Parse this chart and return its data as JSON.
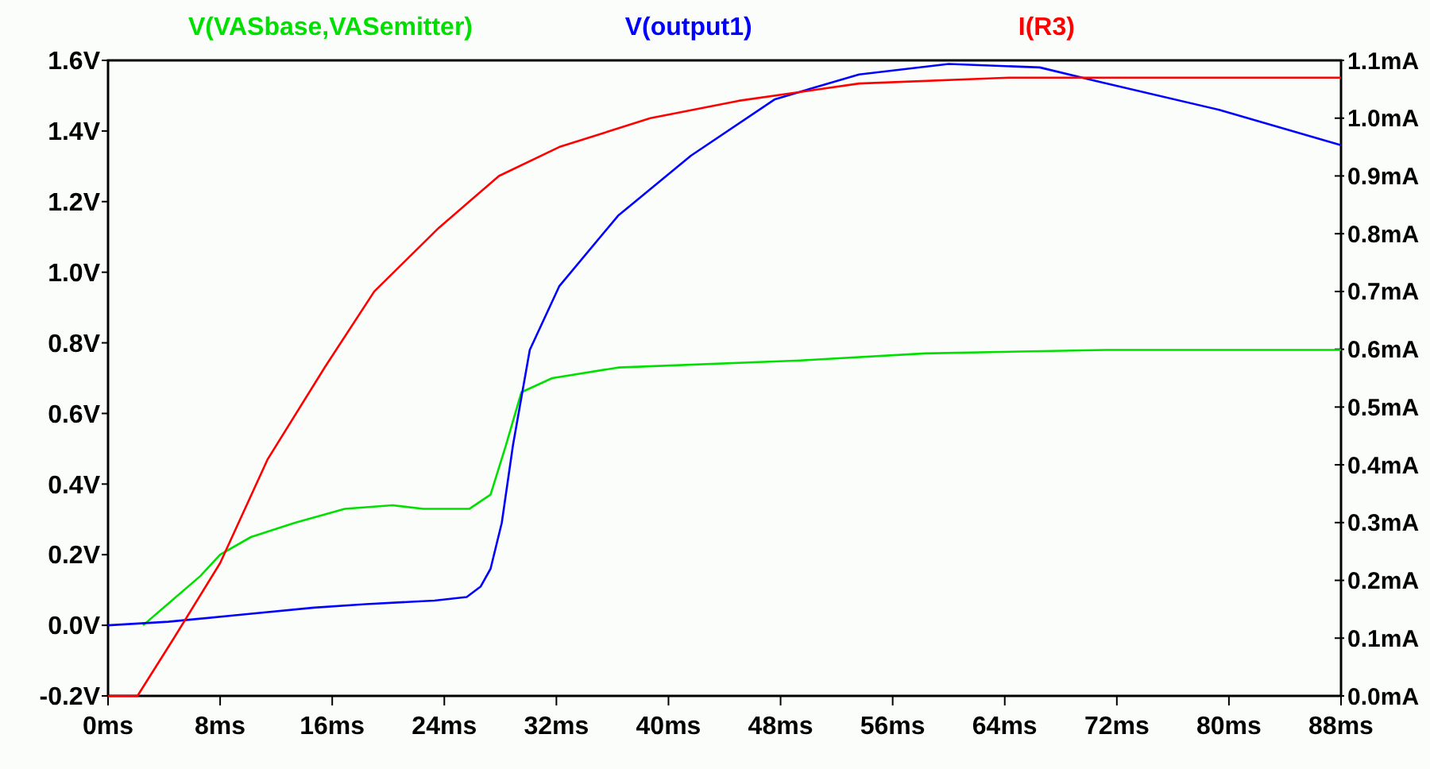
{
  "chart_data": {
    "type": "line",
    "legend": "top",
    "grid": false,
    "marker": "none",
    "line_style": "solid",
    "xlim": [
      0,
      88
    ],
    "xticks": [
      {
        "value": 0,
        "label": "0ms"
      },
      {
        "value": 8,
        "label": "8ms"
      },
      {
        "value": 16,
        "label": "16ms"
      },
      {
        "value": 24,
        "label": "24ms"
      },
      {
        "value": 32,
        "label": "32ms"
      },
      {
        "value": 40,
        "label": "40ms"
      },
      {
        "value": 48,
        "label": "48ms"
      },
      {
        "value": 56,
        "label": "56ms"
      },
      {
        "value": 64,
        "label": "64ms"
      },
      {
        "value": 72,
        "label": "72ms"
      },
      {
        "value": 80,
        "label": "80ms"
      },
      {
        "value": 88,
        "label": "88ms"
      }
    ],
    "ylim": [
      -0.2,
      1.6
    ],
    "yticks": [
      {
        "value": -0.2,
        "label": "-0.2V"
      },
      {
        "value": 0,
        "label": "0.0V"
      },
      {
        "value": 0.2,
        "label": "0.2V"
      },
      {
        "value": 0.4,
        "label": "0.4V"
      },
      {
        "value": 0.6,
        "label": "0.6V"
      },
      {
        "value": 0.8,
        "label": "0.8V"
      },
      {
        "value": 1.0,
        "label": "1.0V"
      },
      {
        "value": 1.2,
        "label": "1.2V"
      },
      {
        "value": 1.4,
        "label": "1.4V"
      },
      {
        "value": 1.6,
        "label": "1.6V"
      }
    ],
    "y2lim": [
      0,
      1.1
    ],
    "y2ticks": [
      {
        "value": 0,
        "label": "0.0mA"
      },
      {
        "value": 0.1,
        "label": "0.1mA"
      },
      {
        "value": 0.2,
        "label": "0.2mA"
      },
      {
        "value": 0.3,
        "label": "0.3mA"
      },
      {
        "value": 0.4,
        "label": "0.4mA"
      },
      {
        "value": 0.5,
        "label": "0.5mA"
      },
      {
        "value": 0.6,
        "label": "0.6mA"
      },
      {
        "value": 0.7,
        "label": "0.7mA"
      },
      {
        "value": 0.8,
        "label": "0.8mA"
      },
      {
        "value": 0.9,
        "label": "0.9mA"
      },
      {
        "value": 1.0,
        "label": "1.0mA"
      },
      {
        "value": 1.1,
        "label": "1.1mA"
      }
    ],
    "series": [
      {
        "name": "V(VASbase,VASemitter)",
        "color": "#00e000",
        "x": [
          2.5,
          6.6,
          8,
          10.2,
          13.3,
          16.9,
          20.3,
          22.5,
          25.8,
          27.3,
          28.4,
          29.5,
          31.7,
          36.4,
          49.4,
          58.3,
          71.2,
          88
        ],
        "values": [
          0,
          0.14,
          0.2,
          0.25,
          0.29,
          0.33,
          0.34,
          0.33,
          0.33,
          0.37,
          0.51,
          0.66,
          0.7,
          0.73,
          0.75,
          0.77,
          0.78,
          0.78
        ]
      },
      {
        "name": "V(output1)",
        "color": "#0000ff",
        "x": [
          0,
          4.3,
          9.5,
          14.7,
          18.4,
          23.3,
          25.6,
          26.6,
          27.3,
          28.1,
          28.9,
          30.1,
          32.2,
          36.4,
          41.6,
          47.6,
          53.6,
          60,
          66.5,
          70.7,
          79.3,
          88
        ],
        "values": [
          0,
          0.01,
          0.03,
          0.05,
          0.06,
          0.07,
          0.08,
          0.11,
          0.16,
          0.29,
          0.51,
          0.78,
          0.96,
          1.16,
          1.33,
          1.49,
          1.56,
          1.59,
          1.58,
          1.54,
          1.46,
          1.36
        ]
      },
      {
        "name": "I(R3)",
        "color": "#ff0000",
        "axis": "y2",
        "x": [
          0,
          2.1,
          4.7,
          8,
          11.4,
          15.5,
          19,
          23.6,
          27.9,
          32.2,
          38.7,
          45,
          53.6,
          64.3,
          79.3,
          88
        ],
        "values": [
          0,
          0,
          0.1,
          0.23,
          0.41,
          0.57,
          0.7,
          0.81,
          0.9,
          0.95,
          1.0,
          1.03,
          1.06,
          1.07,
          1.07,
          1.07
        ]
      }
    ]
  }
}
